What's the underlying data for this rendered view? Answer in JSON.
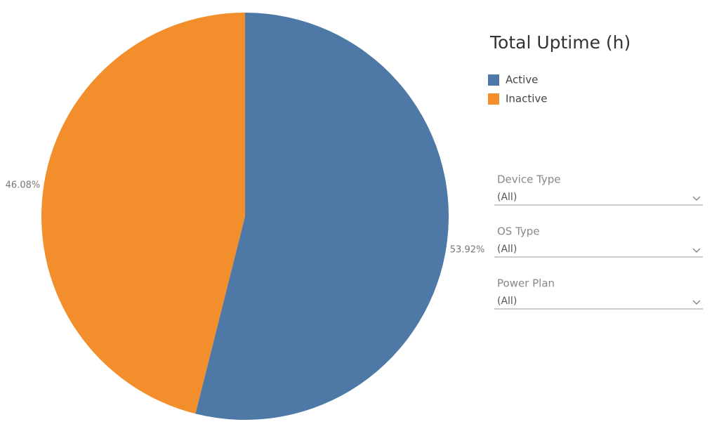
{
  "chart_data": {
    "type": "pie",
    "title": "Total Uptime (h)",
    "categories": [
      "Active",
      "Inactive"
    ],
    "values": [
      53.92,
      46.08
    ],
    "value_labels": [
      "53.92%",
      "46.08%"
    ],
    "colors": [
      "#4e79a7",
      "#f28e2b"
    ]
  },
  "filters": [
    {
      "label": "Device Type",
      "value": "(All)"
    },
    {
      "label": "OS Type",
      "value": "(All)"
    },
    {
      "label": "Power Plan",
      "value": "(All)"
    }
  ]
}
